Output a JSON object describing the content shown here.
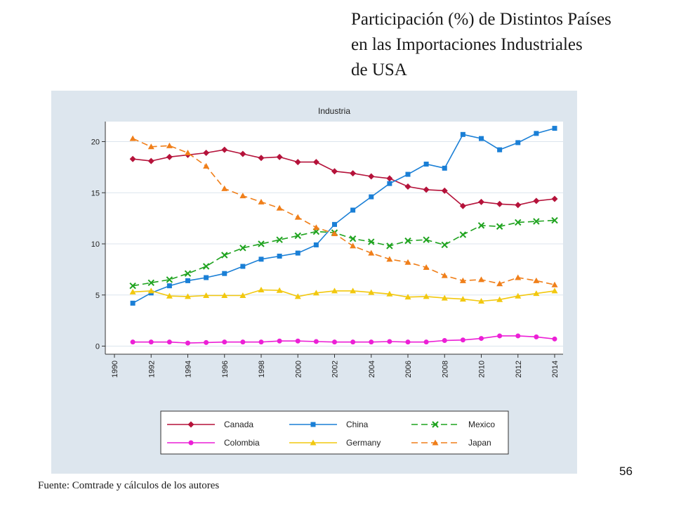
{
  "slide": {
    "title_lines": [
      "Participación (%) de Distintos Países",
      "en las Importaciones Industriales",
      "de USA"
    ],
    "footer": "Fuente: Comtrade y cálculos de los autores",
    "page_number": "56"
  },
  "colors": {
    "panel_bg": "#dde6ee",
    "plot_bg": "#ffffff",
    "gridline": "#dce5ed"
  },
  "chart_data": {
    "type": "line",
    "title": "Industria",
    "xlabel": "",
    "ylabel": "",
    "xlim": [
      1990,
      2014
    ],
    "ylim": [
      0,
      22
    ],
    "xticks": [
      1990,
      1992,
      1994,
      1996,
      1998,
      2000,
      2002,
      2004,
      2006,
      2008,
      2010,
      2012,
      2014
    ],
    "yticks": [
      0,
      5,
      10,
      15,
      20
    ],
    "grid": true,
    "legend_position": "bottom",
    "x": [
      1991,
      1992,
      1993,
      1994,
      1995,
      1996,
      1997,
      1998,
      1999,
      2000,
      2001,
      2002,
      2003,
      2004,
      2005,
      2006,
      2007,
      2008,
      2009,
      2010,
      2011,
      2012,
      2013,
      2014
    ],
    "series": [
      {
        "name": "Canada",
        "color": "#b5123a",
        "dash": "solid",
        "marker": "diamond",
        "values": [
          18.3,
          18.1,
          18.5,
          18.7,
          18.9,
          19.2,
          18.8,
          18.4,
          18.5,
          18.0,
          18.0,
          17.1,
          16.9,
          16.6,
          16.4,
          15.6,
          15.3,
          15.2,
          13.7,
          14.1,
          13.9,
          13.8,
          14.2,
          14.4
        ]
      },
      {
        "name": "China",
        "color": "#1a7fd6",
        "dash": "solid",
        "marker": "square",
        "values": [
          4.2,
          5.2,
          5.9,
          6.4,
          6.7,
          7.1,
          7.8,
          8.5,
          8.8,
          9.1,
          9.9,
          11.9,
          13.3,
          14.6,
          15.9,
          16.8,
          17.8,
          17.4,
          20.7,
          20.3,
          19.2,
          19.9,
          20.8,
          21.3
        ]
      },
      {
        "name": "Mexico",
        "color": "#1fa31f",
        "dash": "dashed",
        "marker": "x",
        "values": [
          5.9,
          6.2,
          6.5,
          7.1,
          7.8,
          8.9,
          9.6,
          10.0,
          10.4,
          10.8,
          11.2,
          11.1,
          10.5,
          10.2,
          9.8,
          10.3,
          10.4,
          9.9,
          10.9,
          11.8,
          11.7,
          12.1,
          12.2,
          12.3
        ]
      },
      {
        "name": "Colombia",
        "color": "#ec1fd6",
        "dash": "solid",
        "marker": "circle",
        "values": [
          0.4,
          0.4,
          0.4,
          0.3,
          0.35,
          0.4,
          0.4,
          0.4,
          0.5,
          0.5,
          0.45,
          0.4,
          0.4,
          0.4,
          0.45,
          0.4,
          0.4,
          0.55,
          0.6,
          0.75,
          1.0,
          1.0,
          0.9,
          0.7
        ]
      },
      {
        "name": "Germany",
        "color": "#f2c80f",
        "dash": "solid",
        "marker": "triangle",
        "values": [
          5.3,
          5.4,
          4.9,
          4.85,
          4.95,
          4.95,
          4.95,
          5.5,
          5.45,
          4.85,
          5.2,
          5.4,
          5.4,
          5.25,
          5.1,
          4.8,
          4.85,
          4.7,
          4.6,
          4.4,
          4.55,
          4.9,
          5.15,
          5.4
        ]
      },
      {
        "name": "Japan",
        "color": "#f07f1a",
        "dash": "dashed",
        "marker": "triangle",
        "values": [
          20.3,
          19.5,
          19.6,
          18.9,
          17.6,
          15.4,
          14.7,
          14.1,
          13.5,
          12.6,
          11.6,
          11.0,
          9.8,
          9.1,
          8.5,
          8.2,
          7.7,
          6.9,
          6.4,
          6.5,
          6.1,
          6.7,
          6.4,
          6.0
        ]
      }
    ]
  }
}
